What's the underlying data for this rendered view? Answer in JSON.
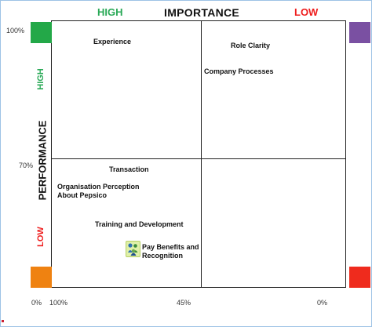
{
  "header": {
    "high": "HIGH",
    "importance": "IMPORTANCE",
    "low": "LOW"
  },
  "side": {
    "high": "HIGH",
    "performance": "PERFORMANCE",
    "low": "LOW"
  },
  "ticks": {
    "v_top": "100%",
    "v_mid": "70%",
    "v_bottom": "0%",
    "h_left": "100%",
    "h_mid": "45%",
    "h_right": "0%"
  },
  "items": {
    "experience": "Experience",
    "role_clarity": "Role Clarity",
    "company_processes": "Company Processes",
    "transaction": "Transaction",
    "org_perception_line1": "Organisation Perception",
    "org_perception_line2": "About Pepsico",
    "training": "Training and Development",
    "pay_line1": "Pay Benefits and",
    "pay_line2": "Recognition"
  },
  "icons": {
    "people": "people-group-icon"
  },
  "colors": {
    "high": "#2aa957",
    "low": "#ee1c1c",
    "corner_top_left": "#23a848",
    "corner_top_right": "#7a50a2",
    "corner_bottom_left": "#ef8211",
    "corner_bottom_right": "#ef2b1d"
  }
}
